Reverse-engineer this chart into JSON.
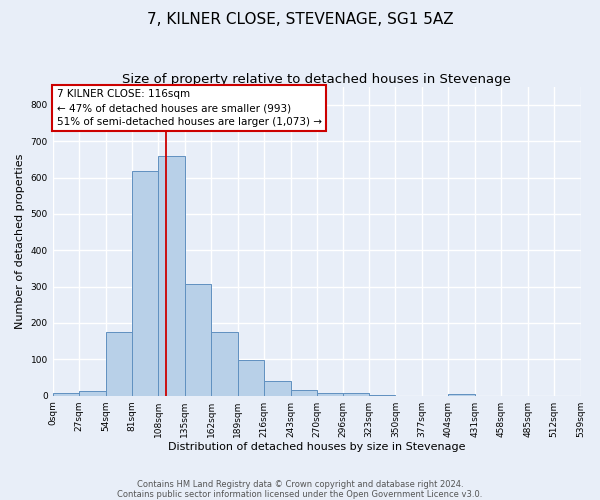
{
  "title": "7, KILNER CLOSE, STEVENAGE, SG1 5AZ",
  "subtitle": "Size of property relative to detached houses in Stevenage",
  "xlabel": "Distribution of detached houses by size in Stevenage",
  "ylabel": "Number of detached properties",
  "footer_line1": "Contains HM Land Registry data © Crown copyright and database right 2024.",
  "footer_line2": "Contains public sector information licensed under the Open Government Licence v3.0.",
  "bin_edges": [
    0,
    27,
    54,
    81,
    108,
    135,
    162,
    189,
    216,
    243,
    270,
    296,
    323,
    350,
    377,
    404,
    431,
    458,
    485,
    512,
    539
  ],
  "bar_heights": [
    8,
    13,
    175,
    617,
    660,
    308,
    175,
    97,
    40,
    15,
    8,
    7,
    2,
    0,
    0,
    5,
    0,
    0,
    0,
    0
  ],
  "bar_color": "#b8d0e8",
  "bar_edge_color": "#6090c0",
  "bar_edge_width": 0.7,
  "property_line_x": 116,
  "property_line_color": "#cc0000",
  "annotation_text": "7 KILNER CLOSE: 116sqm\n← 47% of detached houses are smaller (993)\n51% of semi-detached houses are larger (1,073) →",
  "annotation_box_facecolor": "#ffffff",
  "annotation_box_edgecolor": "#cc0000",
  "ylim": [
    0,
    850
  ],
  "yticks": [
    0,
    100,
    200,
    300,
    400,
    500,
    600,
    700,
    800
  ],
  "bg_color": "#e8eef8",
  "axes_bg_color": "#e8eef8",
  "grid_color": "#ffffff",
  "title_fontsize": 11,
  "subtitle_fontsize": 9.5,
  "tick_label_fontsize": 6.5,
  "ylabel_fontsize": 8,
  "xlabel_fontsize": 8,
  "annotation_fontsize": 7.5,
  "footer_fontsize": 6.0
}
